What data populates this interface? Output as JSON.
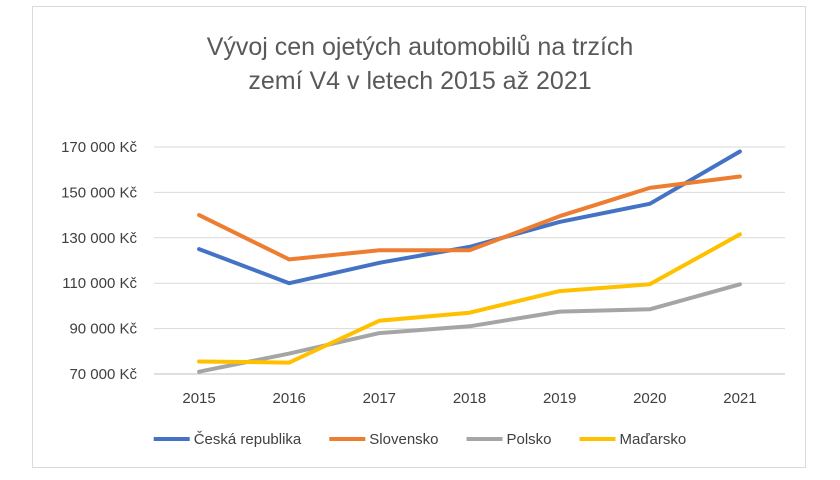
{
  "chart_data": {
    "type": "line",
    "title_lines": [
      "Vývoj cen ojetých automobilů na trzích",
      "zemí V4 v letech 2015 až 2021"
    ],
    "xlabel": "",
    "ylabel": "",
    "categories": [
      "2015",
      "2016",
      "2017",
      "2018",
      "2019",
      "2020",
      "2021"
    ],
    "y_ticks": [
      70000,
      90000,
      110000,
      130000,
      150000,
      170000
    ],
    "y_tick_labels": [
      "70 000 Kč",
      "90 000 Kč",
      "110 000 Kč",
      "130 000 Kč",
      "150 000 Kč",
      "170 000 Kč"
    ],
    "ylim": [
      70000,
      170000
    ],
    "grid": true,
    "legend_position": "bottom",
    "series": [
      {
        "name": "Česká republika",
        "color": "#4472C4",
        "values": [
          125000,
          110000,
          119000,
          126000,
          137000,
          145000,
          168000
        ]
      },
      {
        "name": "Slovensko",
        "color": "#ED7D31",
        "values": [
          140000,
          120500,
          124500,
          124500,
          139500,
          152000,
          157000
        ]
      },
      {
        "name": "Polsko",
        "color": "#A5A5A5",
        "values": [
          71000,
          79000,
          88000,
          91000,
          97500,
          98500,
          109500
        ]
      },
      {
        "name": "Maďarsko",
        "color": "#FFC000",
        "values": [
          75500,
          75000,
          93500,
          97000,
          106500,
          109500,
          131500
        ]
      }
    ]
  }
}
